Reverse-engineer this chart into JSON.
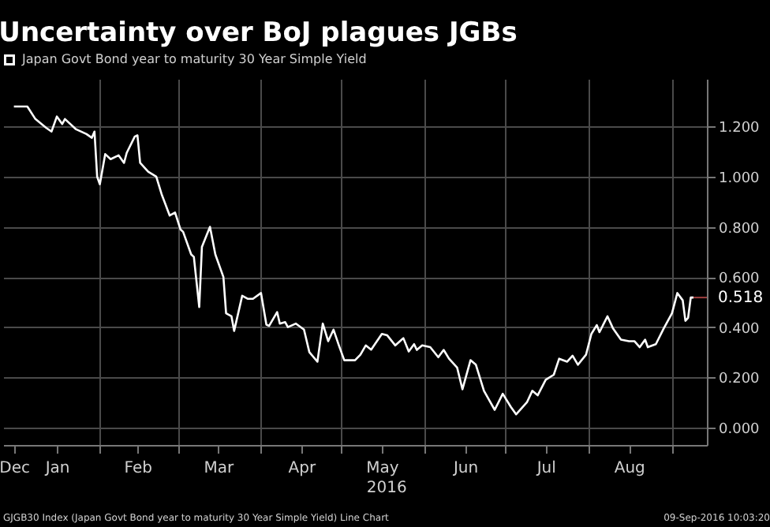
{
  "chart_data": {
    "type": "line",
    "title": "Uncertainty over BoJ plagues JGBs",
    "x": [
      "2015-12-31",
      "2016-01-05",
      "2016-01-08",
      "2016-01-12",
      "2016-01-14",
      "2016-01-16",
      "2016-01-18",
      "2016-01-19",
      "2016-01-23",
      "2016-01-27",
      "2016-01-29",
      "2016-01-30",
      "2016-01-31",
      "2016-02-01",
      "2016-02-03",
      "2016-02-05",
      "2016-02-08",
      "2016-02-10",
      "2016-02-11",
      "2016-02-14",
      "2016-02-15",
      "2016-02-16",
      "2016-02-19",
      "2016-02-22",
      "2016-02-24",
      "2016-02-27",
      "2016-02-29",
      "2016-03-02",
      "2016-03-03",
      "2016-03-06",
      "2016-03-07",
      "2016-03-09",
      "2016-03-10",
      "2016-03-13",
      "2016-03-15",
      "2016-03-18",
      "2016-03-19",
      "2016-03-21",
      "2016-03-22",
      "2016-03-25",
      "2016-03-27",
      "2016-03-29",
      "2016-04-01",
      "2016-04-03",
      "2016-04-04",
      "2016-04-07",
      "2016-04-08",
      "2016-04-10",
      "2016-04-11",
      "2016-04-14",
      "2016-04-17",
      "2016-04-19",
      "2016-04-22",
      "2016-04-24",
      "2016-04-26",
      "2016-04-28",
      "2016-04-30",
      "2016-05-02",
      "2016-05-06",
      "2016-05-08",
      "2016-05-10",
      "2016-05-12",
      "2016-05-16",
      "2016-05-18",
      "2016-05-21",
      "2016-05-24",
      "2016-05-26",
      "2016-05-28",
      "2016-05-29",
      "2016-05-31",
      "2016-06-03",
      "2016-06-06",
      "2016-06-08",
      "2016-06-10",
      "2016-06-13",
      "2016-06-15",
      "2016-06-18",
      "2016-06-20",
      "2016-06-23",
      "2016-06-27",
      "2016-06-30",
      "2016-07-03",
      "2016-07-05",
      "2016-07-09",
      "2016-07-11",
      "2016-07-13",
      "2016-07-16",
      "2016-07-19",
      "2016-07-21",
      "2016-07-24",
      "2016-07-26",
      "2016-07-28",
      "2016-07-31",
      "2016-08-02",
      "2016-08-04",
      "2016-08-05",
      "2016-08-08",
      "2016-08-10",
      "2016-08-13",
      "2016-08-16",
      "2016-08-18",
      "2016-08-20",
      "2016-08-22",
      "2016-08-23",
      "2016-08-26",
      "2016-08-29",
      "2016-09-01",
      "2016-09-03",
      "2016-09-05",
      "2016-09-06",
      "2016-09-07",
      "2016-09-08",
      "2016-09-09"
    ],
    "series": [
      {
        "name": "Japan Govt Bond year to maturity 30 Year Simple Yield",
        "color": "#ffffff",
        "values": [
          1.28,
          1.28,
          1.23,
          1.195,
          1.18,
          1.24,
          1.21,
          1.23,
          1.19,
          1.17,
          1.155,
          1.18,
          1.0,
          0.97,
          1.09,
          1.07,
          1.085,
          1.055,
          1.095,
          1.16,
          1.165,
          1.055,
          1.02,
          1.0,
          0.93,
          0.845,
          0.857,
          0.79,
          0.78,
          0.69,
          0.68,
          0.48,
          0.72,
          0.8,
          0.69,
          0.6,
          0.455,
          0.443,
          0.385,
          0.525,
          0.513,
          0.513,
          0.536,
          0.41,
          0.405,
          0.46,
          0.414,
          0.42,
          0.4,
          0.414,
          0.39,
          0.3,
          0.262,
          0.414,
          0.344,
          0.39,
          0.327,
          0.268,
          0.268,
          0.29,
          0.327,
          0.31,
          0.373,
          0.367,
          0.327,
          0.356,
          0.303,
          0.332,
          0.309,
          0.327,
          0.32,
          0.28,
          0.309,
          0.274,
          0.239,
          0.152,
          0.268,
          0.25,
          0.146,
          0.07,
          0.134,
          0.082,
          0.052,
          0.1,
          0.146,
          0.128,
          0.19,
          0.21,
          0.274,
          0.262,
          0.286,
          0.25,
          0.29,
          0.373,
          0.408,
          0.38,
          0.443,
          0.396,
          0.35,
          0.344,
          0.344,
          0.32,
          0.35,
          0.32,
          0.332,
          0.396,
          0.455,
          0.536,
          0.507,
          0.425,
          0.437,
          0.518,
          0.518
        ]
      }
    ],
    "xlim": [
      "2015-12-27",
      "2016-09-14"
    ],
    "xticks": [
      {
        "value": "2015-12-31",
        "label": "Dec"
      },
      {
        "value": "2016-01-16",
        "label": "Jan"
      },
      {
        "value": "2016-02-01",
        "label": null
      },
      {
        "value": "2016-02-15",
        "label": "Feb"
      },
      {
        "value": "2016-03-01",
        "label": null
      },
      {
        "value": "2016-03-16",
        "label": "Mar"
      },
      {
        "value": "2016-04-01",
        "label": null
      },
      {
        "value": "2016-04-16",
        "label": "Apr"
      },
      {
        "value": "2016-05-01",
        "label": null
      },
      {
        "value": "2016-05-16",
        "label": "May"
      },
      {
        "value": "2016-06-01",
        "label": null
      },
      {
        "value": "2016-06-16",
        "label": "Jun"
      },
      {
        "value": "2016-07-01",
        "label": null
      },
      {
        "value": "2016-07-16",
        "label": "Jul"
      },
      {
        "value": "2016-08-01",
        "label": null
      },
      {
        "value": "2016-08-16",
        "label": "Aug"
      },
      {
        "value": "2016-09-01",
        "label": null
      }
    ],
    "ylim": [
      -0.07,
      1.39
    ],
    "yticks": [
      {
        "value": 0,
        "label": "0.000"
      },
      {
        "value": 0.2,
        "label": "0.200"
      },
      {
        "value": 0.4,
        "label": "0.400"
      },
      {
        "value": 0.6,
        "label": "0.600"
      },
      {
        "value": 0.8,
        "label": "0.800"
      },
      {
        "value": 1.0,
        "label": "1.000"
      },
      {
        "value": 1.2,
        "label": "1.200"
      }
    ],
    "grid": true,
    "legend": "top left",
    "marker": "none",
    "line_style": "solid",
    "annotations": [
      "2016",
      {
        "text": "0.518",
        "x": "2016-09-09",
        "y": 0.518
      },
      "GJGB30 Index (Japan Govt Bond year to maturity 30 Year Simple Yield) Line Chart",
      "09-Sep-2016 10:03:20"
    ]
  }
}
